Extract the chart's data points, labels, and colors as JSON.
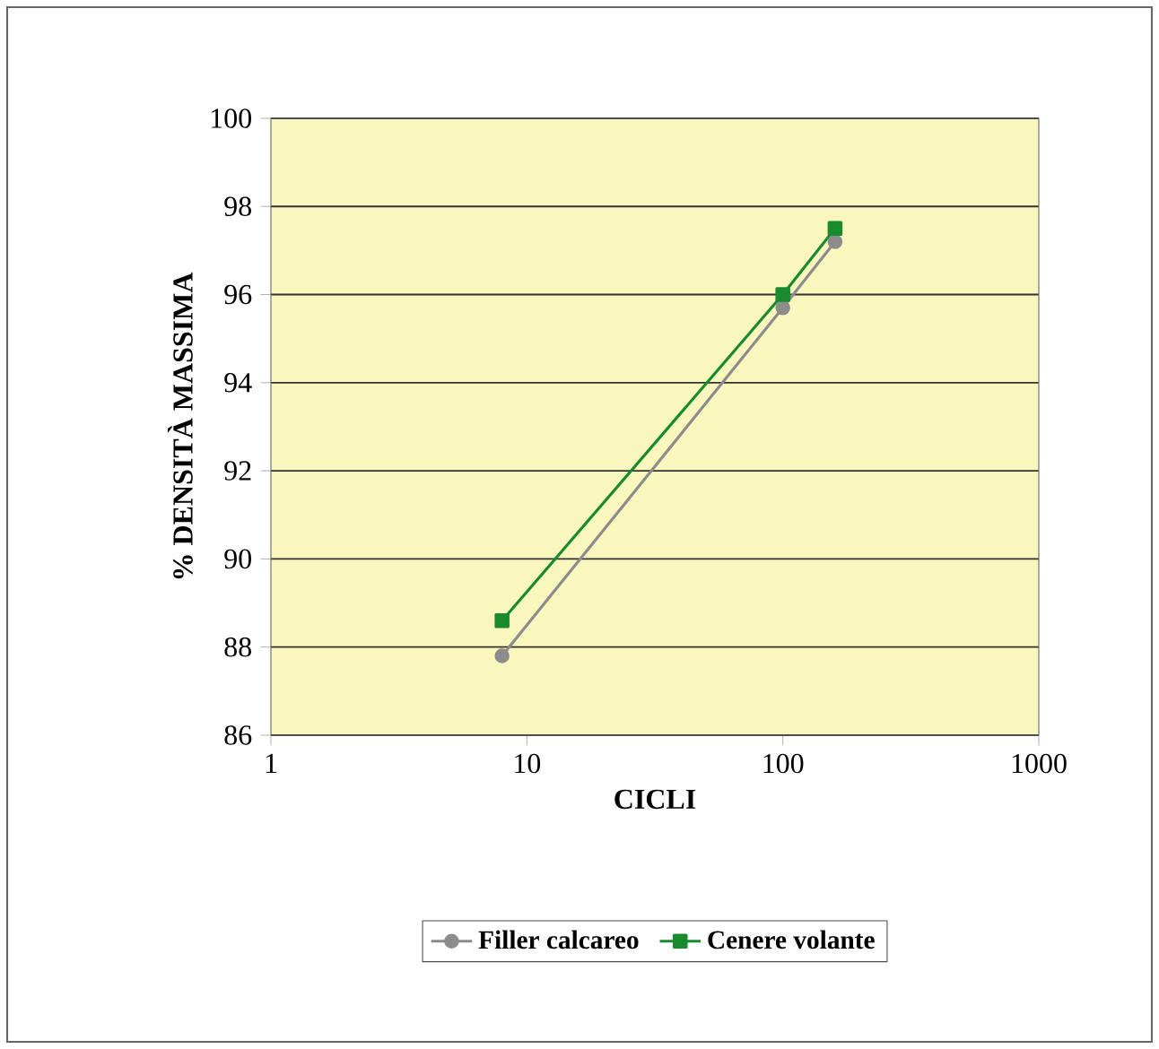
{
  "chart_data": {
    "type": "line",
    "xlabel": "CICLI",
    "ylabel": "% DENSITÀ MASSIMA",
    "log": "x",
    "xlim": [
      1,
      1000
    ],
    "xticks": [
      1,
      10,
      100,
      1000
    ],
    "ylim": [
      86,
      100
    ],
    "yticks": [
      86,
      88,
      90,
      92,
      94,
      96,
      98,
      100
    ],
    "grid": "y",
    "legend": "bottom",
    "series": [
      {
        "name": "Filler calcareo",
        "color": "#8c8c8c",
        "marker": "circle",
        "x": [
          8,
          100,
          160
        ],
        "values": [
          87.8,
          95.7,
          97.2
        ]
      },
      {
        "name": "Cenere volante",
        "color": "#1a8a2e",
        "marker": "square",
        "x": [
          8,
          100,
          160
        ],
        "values": [
          88.6,
          96.0,
          97.5
        ]
      }
    ]
  }
}
